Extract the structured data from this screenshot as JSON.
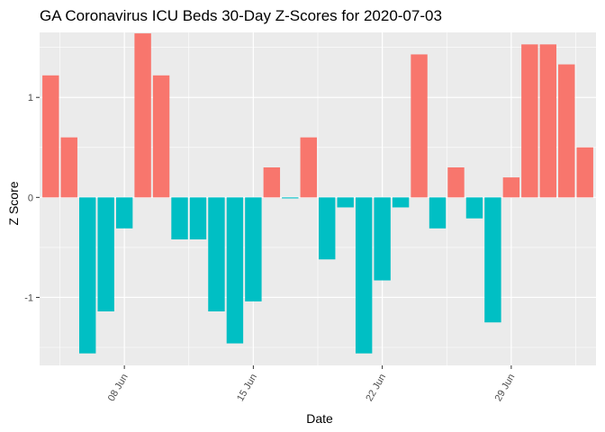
{
  "chart_data": {
    "type": "bar",
    "title": "GA Coronavirus ICU Beds 30-Day Z-Scores for 2020-07-03",
    "xlabel": "Date",
    "ylabel": "Z Score",
    "x_ticks": [
      "08 Jun",
      "15 Jun",
      "22 Jun",
      "29 Jun"
    ],
    "y_ticks": [
      -1,
      0,
      1
    ],
    "ylim": [
      -1.68,
      1.65
    ],
    "grid": true,
    "legend": "none",
    "colors": {
      "positive": "#F8766D",
      "negative": "#00BFC4",
      "panel": "#EBEBEB",
      "grid": "#FFFFFF"
    },
    "x": [
      "2020-06-04",
      "2020-06-05",
      "2020-06-06",
      "2020-06-07",
      "2020-06-08",
      "2020-06-09",
      "2020-06-10",
      "2020-06-11",
      "2020-06-12",
      "2020-06-13",
      "2020-06-14",
      "2020-06-15",
      "2020-06-16",
      "2020-06-17",
      "2020-06-18",
      "2020-06-19",
      "2020-06-20",
      "2020-06-21",
      "2020-06-22",
      "2020-06-23",
      "2020-06-24",
      "2020-06-25",
      "2020-06-26",
      "2020-06-27",
      "2020-06-28",
      "2020-06-29",
      "2020-06-30",
      "2020-07-01",
      "2020-07-02",
      "2020-07-03"
    ],
    "values": [
      1.22,
      0.6,
      -1.56,
      -1.14,
      -0.31,
      1.64,
      1.22,
      -0.42,
      -0.42,
      -1.14,
      -1.46,
      -1.04,
      0.3,
      -0.01,
      0.6,
      -0.62,
      -0.1,
      -1.56,
      -0.83,
      -0.1,
      1.43,
      -0.31,
      0.3,
      -0.21,
      -1.25,
      0.2,
      1.53,
      1.53,
      1.33,
      0.5
    ]
  }
}
